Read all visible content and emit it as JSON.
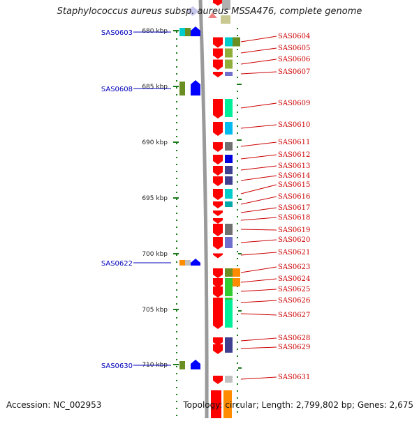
{
  "title": "Staphylococcus aureus subsp. aureus MSSA476, complete genome",
  "accession": "Accession: NC_002953",
  "topology": "Topology: circular; Length: 2,799,802 bp; Genes: 2,675",
  "colors": {
    "gene_label": "#cc0000",
    "left_label": "#0000bb",
    "strand": "#9a9a9a",
    "tick": "#1a7a1a",
    "forward_arrow": "#ff0000",
    "reverse_arrow": "#0000ff",
    "background": "#ffffff"
  },
  "ruler": [
    "680 kbp",
    "685 kbp",
    "690 kbp",
    "695 kbp",
    "700 kbp",
    "705 kbp",
    "710 kbp"
  ],
  "left_genes": [
    {
      "label": "SAS0603",
      "arrow": "reverse",
      "boxes": [
        "#00cccc",
        "#6b8e23"
      ]
    },
    {
      "label": "SAS0608",
      "arrow": "reverse",
      "boxes": [
        "#6b8e23"
      ]
    },
    {
      "label": "SAS0622",
      "arrow": "reverse",
      "boxes": [
        "#ff8c00",
        "#c0c0c0"
      ]
    },
    {
      "label": "SAS0630",
      "arrow": "reverse",
      "boxes": [
        "#6b8e23"
      ]
    }
  ],
  "right_genes": [
    {
      "label": "SAS0604",
      "arrow": "forward",
      "boxes": [
        "#00cccc",
        "#6b8e23"
      ]
    },
    {
      "label": "SAS0605",
      "arrow": "forward",
      "boxes": [
        "#8fae3a"
      ]
    },
    {
      "label": "SAS0606",
      "arrow": "forward",
      "boxes": [
        "#8fae3a"
      ]
    },
    {
      "label": "SAS0607",
      "arrow": "forward",
      "boxes": [
        "#7070cc"
      ]
    },
    {
      "label": "SAS0609",
      "arrow": "forward",
      "boxes": [
        "#00ee99"
      ]
    },
    {
      "label": "SAS0610",
      "arrow": "forward",
      "boxes": [
        "#00bbee"
      ]
    },
    {
      "label": "SAS0611",
      "arrow": "forward",
      "boxes": [
        "#707070"
      ]
    },
    {
      "label": "SAS0612",
      "arrow": "forward",
      "boxes": [
        "#0000dd"
      ]
    },
    {
      "label": "SAS0613",
      "arrow": "forward",
      "boxes": [
        "#404090"
      ]
    },
    {
      "label": "SAS0614",
      "arrow": "forward",
      "boxes": [
        "#404090"
      ]
    },
    {
      "label": "SAS0615",
      "arrow": "forward",
      "boxes": [
        "#00cccc"
      ]
    },
    {
      "label": "SAS0616",
      "arrow": "forward",
      "boxes": [
        "#00aaaa"
      ]
    },
    {
      "label": "SAS0617",
      "arrow": "forward",
      "boxes": []
    },
    {
      "label": "SAS0618",
      "arrow": "forward",
      "boxes": []
    },
    {
      "label": "SAS0619",
      "arrow": "forward",
      "boxes": [
        "#707070"
      ]
    },
    {
      "label": "SAS0620",
      "arrow": "forward",
      "boxes": [
        "#7070cc"
      ]
    },
    {
      "label": "SAS0621",
      "arrow": "forward",
      "boxes": []
    },
    {
      "label": "SAS0623",
      "arrow": "forward",
      "boxes": [
        "#6b8e23",
        "#ff8c00"
      ]
    },
    {
      "label": "SAS0624",
      "arrow": "forward",
      "boxes": [
        "#32cd32",
        "#ff8c00"
      ]
    },
    {
      "label": "SAS0625",
      "arrow": "forward",
      "boxes": [
        "#32cd32"
      ]
    },
    {
      "label": "SAS0626",
      "arrow": "forward",
      "boxes": [
        "#32cd32"
      ]
    },
    {
      "label": "SAS0627",
      "arrow": "forward",
      "boxes": [
        "#00ee99"
      ]
    },
    {
      "label": "SAS0628",
      "arrow": "forward",
      "boxes": [
        "#404090"
      ]
    },
    {
      "label": "SAS0629",
      "arrow": "forward",
      "boxes": [
        "#404090"
      ]
    },
    {
      "label": "SAS0631",
      "arrow": "forward",
      "boxes": [
        "#c0c0c0"
      ]
    }
  ]
}
